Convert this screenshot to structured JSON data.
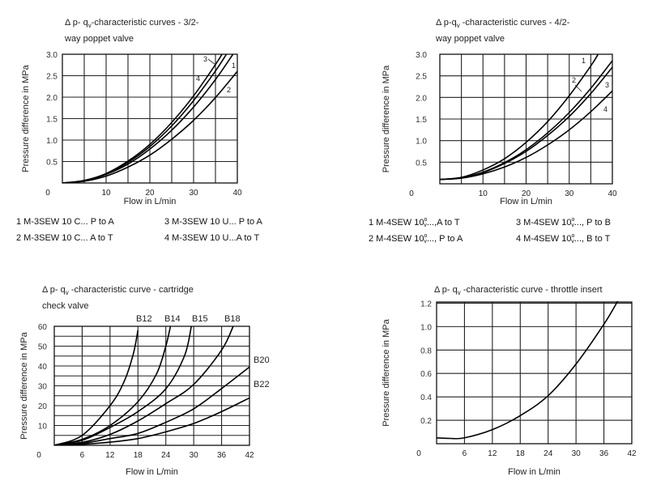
{
  "chart_data": [
    {
      "type": "line",
      "title": {
        "prefix": "Δ p- q",
        "sub": "v",
        "line1": "-characteristic curves - 3/2-",
        "line2": "way poppet valve"
      },
      "xlabel": "Flow in L/min",
      "ylabel": "Pressure difference in MPa",
      "xlim": [
        0,
        40
      ],
      "ylim": [
        0,
        3.0
      ],
      "origin_label": "0",
      "x_ticks": [
        10,
        20,
        30,
        40
      ],
      "y_ticks": [
        "0.5",
        "1.0",
        "1.5",
        "2.0",
        "2.5",
        "3.0"
      ],
      "x_grid_step": 5,
      "y_grid_step": 0.5,
      "series": [
        {
          "name": "1",
          "x": [
            0,
            5,
            10,
            15,
            20,
            25,
            30,
            35,
            39
          ],
          "y": [
            0,
            0.05,
            0.2,
            0.44,
            0.79,
            1.23,
            1.77,
            2.41,
            3.0
          ]
        },
        {
          "name": "2",
          "x": [
            0,
            5,
            10,
            15,
            20,
            25,
            30,
            35,
            40
          ],
          "y": [
            0,
            0.04,
            0.16,
            0.37,
            0.65,
            1.02,
            1.46,
            1.99,
            2.6
          ]
        },
        {
          "name": "3",
          "x": [
            0,
            5,
            10,
            15,
            20,
            25,
            30,
            35,
            36.5
          ],
          "y": [
            0,
            0.06,
            0.22,
            0.51,
            0.9,
            1.41,
            2.03,
            2.76,
            3.0
          ]
        },
        {
          "name": "4",
          "x": [
            0,
            5,
            10,
            15,
            20,
            25,
            30,
            35,
            37.5
          ],
          "y": [
            0,
            0.05,
            0.21,
            0.48,
            0.85,
            1.33,
            1.92,
            2.61,
            3.0
          ]
        }
      ],
      "legend": [
        {
          "text": "1 M-3SEW 10 C... P to A"
        },
        {
          "text": "3 M-3SEW 10 U... P to A"
        },
        {
          "text": "2 M-3SEW 10 C... A to T"
        },
        {
          "text": "4 M-3SEW 10 U...A to T"
        }
      ]
    },
    {
      "type": "line",
      "title": {
        "prefix": "Δ p-q",
        "sub": "v",
        "line1": " -characteristic curves - 4/2-",
        "line2": "way poppet valve"
      },
      "xlabel": "Flow in L/min",
      "ylabel": "Pressure difference in MPa",
      "xlim": [
        0,
        40
      ],
      "ylim": [
        0,
        3.0
      ],
      "origin_label": "0",
      "x_ticks": [
        10,
        20,
        30,
        40
      ],
      "y_ticks": [
        "0.5",
        "1.0",
        "1.5",
        "2.0",
        "2.5",
        "3.0"
      ],
      "x_grid_step": 5,
      "y_grid_step": 0.5,
      "series": [
        {
          "name": "1",
          "x": [
            0,
            5,
            10,
            15,
            20,
            25,
            30,
            35,
            36.7
          ],
          "y": [
            0.1,
            0.15,
            0.32,
            0.58,
            0.96,
            1.44,
            2.04,
            2.73,
            3.0
          ]
        },
        {
          "name": "2",
          "x": [
            0,
            5,
            10,
            15,
            20,
            25,
            30,
            35,
            40
          ],
          "y": [
            0.1,
            0.14,
            0.27,
            0.49,
            0.79,
            1.18,
            1.65,
            2.21,
            2.85
          ]
        },
        {
          "name": "3",
          "x": [
            0,
            5,
            10,
            15,
            20,
            25,
            30,
            35,
            40
          ],
          "y": [
            0.1,
            0.14,
            0.26,
            0.47,
            0.75,
            1.12,
            1.56,
            2.09,
            2.7
          ]
        },
        {
          "name": "4",
          "x": [
            0,
            5,
            10,
            15,
            20,
            25,
            30,
            35,
            40
          ],
          "y": [
            0.1,
            0.13,
            0.23,
            0.39,
            0.61,
            0.9,
            1.25,
            1.67,
            2.15
          ]
        }
      ],
      "legend": [
        {
          "prefix": "1 M-4SEW 10",
          "sup": "o",
          "sub": "v",
          "suffix": "...,A to T"
        },
        {
          "prefix": "3 M-4SEW 10",
          "sup": "o",
          "sub": "v",
          "suffix": "..., P to B"
        },
        {
          "prefix": "2 M-4SEW 10",
          "sup": "o",
          "sub": "v",
          "suffix": "..., P to A"
        },
        {
          "prefix": "4 M-4SEW 10",
          "sup": "o",
          "sub": "v",
          "suffix": "..., B to T"
        }
      ]
    },
    {
      "type": "line",
      "title": {
        "prefix": "Δ p- q",
        "sub": "v",
        "line1": " -characteristic curve - cartridge",
        "line2": "check valve"
      },
      "xlabel": "Flow in L/min",
      "ylabel": "Pressure difference in MPa",
      "xlim": [
        0,
        42
      ],
      "ylim": [
        0,
        60
      ],
      "origin_label": "0",
      "x_ticks": [
        6,
        12,
        18,
        24,
        30,
        36,
        42
      ],
      "y_ticks": [
        "10",
        "20",
        "30",
        "40",
        "50",
        "60"
      ],
      "x_grid_step": 6,
      "y_grid_step": 5,
      "series": [
        {
          "name": "B12",
          "x": [
            0,
            6,
            12,
            15,
            17,
            18
          ],
          "y": [
            0,
            5,
            20,
            32,
            46,
            58
          ]
        },
        {
          "name": "B14",
          "x": [
            0,
            6,
            12,
            18,
            22,
            24,
            25
          ],
          "y": [
            0,
            3,
            10,
            22,
            36,
            50,
            60
          ]
        },
        {
          "name": "B15",
          "x": [
            0,
            6,
            12,
            18,
            24,
            28,
            29.5
          ],
          "y": [
            0,
            2.5,
            9,
            17,
            28.5,
            45,
            60
          ]
        },
        {
          "name": "B18",
          "x": [
            0,
            6,
            12,
            18,
            24,
            30,
            36,
            38.5
          ],
          "y": [
            0,
            1.5,
            5.5,
            12.3,
            21,
            30.7,
            48,
            60
          ]
        },
        {
          "name": "B20",
          "x": [
            0,
            6,
            12,
            18,
            24,
            30,
            36,
            42
          ],
          "y": [
            0,
            1,
            3.4,
            6,
            11.6,
            18.4,
            28.6,
            39.5
          ]
        },
        {
          "name": "B22",
          "x": [
            0,
            6,
            12,
            18,
            24,
            30,
            36,
            42
          ],
          "y": [
            0,
            0.5,
            1.6,
            3.4,
            6.8,
            11,
            17,
            23.9
          ]
        }
      ]
    },
    {
      "type": "line",
      "title": {
        "prefix": "Δ p- q",
        "sub": "v",
        "line1": " -characteristic curve - throttle insert",
        "line2": ""
      },
      "xlabel": "Flow in L/min",
      "ylabel": "Pressure difference in MPa",
      "xlim": [
        0,
        42
      ],
      "ylim": [
        0,
        1.21
      ],
      "origin_label": "0",
      "x_ticks": [
        6,
        12,
        18,
        24,
        30,
        36,
        42
      ],
      "y_ticks": [
        "0.2",
        "0.4",
        "0.6",
        "0.8",
        "1.0",
        "1.2"
      ],
      "x_grid_step": 6,
      "y_grid_step": 0.2,
      "series": [
        {
          "name": "throttle",
          "x": [
            0,
            3,
            6,
            12,
            18,
            24,
            30,
            36,
            39
          ],
          "y": [
            0.05,
            0.045,
            0.05,
            0.12,
            0.24,
            0.41,
            0.68,
            1.02,
            1.22
          ]
        }
      ]
    }
  ]
}
